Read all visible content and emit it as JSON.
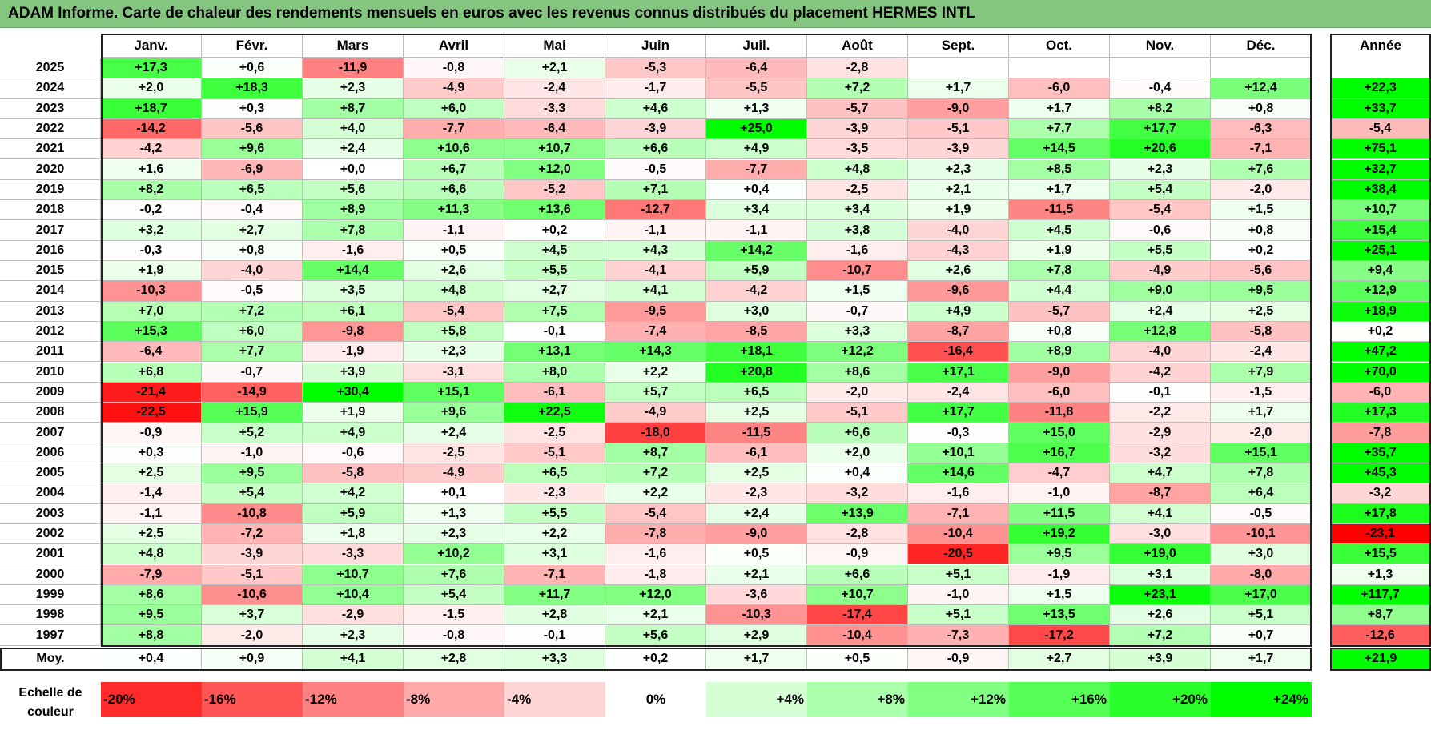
{
  "title": "ADAM Informe. Carte de chaleur des rendements mensuels en euros avec les revenus connus distribués du placement HERMES INTL",
  "chart_data": {
    "type": "heatmap",
    "title": "ADAM Informe. Carte de chaleur des rendements mensuels en euros avec les revenus connus distribués du placement HERMES INTL",
    "months": [
      "Janv.",
      "Févr.",
      "Mars",
      "Avril",
      "Mai",
      "Juin",
      "Juil.",
      "Août",
      "Sept.",
      "Oct.",
      "Nov.",
      "Déc."
    ],
    "year_header": "Année",
    "rows": [
      {
        "year": "2025",
        "values": [
          "+17,3",
          "+0,6",
          "-11,9",
          "-0,8",
          "+2,1",
          "-5,3",
          "-6,4",
          "-2,8",
          "",
          "",
          "",
          ""
        ],
        "annual": ""
      },
      {
        "year": "2024",
        "values": [
          "+2,0",
          "+18,3",
          "+2,3",
          "-4,9",
          "-2,4",
          "-1,7",
          "-5,5",
          "+7,2",
          "+1,7",
          "-6,0",
          "-0,4",
          "+12,4"
        ],
        "annual": "+22,3"
      },
      {
        "year": "2023",
        "values": [
          "+18,7",
          "+0,3",
          "+8,7",
          "+6,0",
          "-3,3",
          "+4,6",
          "+1,3",
          "-5,7",
          "-9,0",
          "+1,7",
          "+8,2",
          "+0,8"
        ],
        "annual": "+33,7"
      },
      {
        "year": "2022",
        "values": [
          "-14,2",
          "-5,6",
          "+4,0",
          "-7,7",
          "-6,4",
          "-3,9",
          "+25,0",
          "-3,9",
          "-5,1",
          "+7,7",
          "+17,7",
          "-6,3"
        ],
        "annual": "-5,4"
      },
      {
        "year": "2021",
        "values": [
          "-4,2",
          "+9,6",
          "+2,4",
          "+10,6",
          "+10,7",
          "+6,6",
          "+4,9",
          "-3,5",
          "-3,9",
          "+14,5",
          "+20,6",
          "-7,1"
        ],
        "annual": "+75,1"
      },
      {
        "year": "2020",
        "values": [
          "+1,6",
          "-6,9",
          "+0,0",
          "+6,7",
          "+12,0",
          "-0,5",
          "-7,7",
          "+4,8",
          "+2,3",
          "+8,5",
          "+2,3",
          "+7,6"
        ],
        "annual": "+32,7"
      },
      {
        "year": "2019",
        "values": [
          "+8,2",
          "+6,5",
          "+5,6",
          "+6,6",
          "-5,2",
          "+7,1",
          "+0,4",
          "-2,5",
          "+2,1",
          "+1,7",
          "+5,4",
          "-2,0"
        ],
        "annual": "+38,4"
      },
      {
        "year": "2018",
        "values": [
          "-0,2",
          "-0,4",
          "+8,9",
          "+11,3",
          "+13,6",
          "-12,7",
          "+3,4",
          "+3,4",
          "+1,9",
          "-11,5",
          "-5,4",
          "+1,5"
        ],
        "annual": "+10,7"
      },
      {
        "year": "2017",
        "values": [
          "+3,2",
          "+2,7",
          "+7,8",
          "-1,1",
          "+0,2",
          "-1,1",
          "-1,1",
          "+3,8",
          "-4,0",
          "+4,5",
          "-0,6",
          "+0,8"
        ],
        "annual": "+15,4"
      },
      {
        "year": "2016",
        "values": [
          "-0,3",
          "+0,8",
          "-1,6",
          "+0,5",
          "+4,5",
          "+4,3",
          "+14,2",
          "-1,6",
          "-4,3",
          "+1,9",
          "+5,5",
          "+0,2"
        ],
        "annual": "+25,1"
      },
      {
        "year": "2015",
        "values": [
          "+1,9",
          "-4,0",
          "+14,4",
          "+2,6",
          "+5,5",
          "-4,1",
          "+5,9",
          "-10,7",
          "+2,6",
          "+7,8",
          "-4,9",
          "-5,6"
        ],
        "annual": "+9,4"
      },
      {
        "year": "2014",
        "values": [
          "-10,3",
          "-0,5",
          "+3,5",
          "+4,8",
          "+2,7",
          "+4,1",
          "-4,2",
          "+1,5",
          "-9,6",
          "+4,4",
          "+9,0",
          "+9,5"
        ],
        "annual": "+12,9"
      },
      {
        "year": "2013",
        "values": [
          "+7,0",
          "+7,2",
          "+6,1",
          "-5,4",
          "+7,5",
          "-9,5",
          "+3,0",
          "-0,7",
          "+4,9",
          "-5,7",
          "+2,4",
          "+2,5"
        ],
        "annual": "+18,9"
      },
      {
        "year": "2012",
        "values": [
          "+15,3",
          "+6,0",
          "-9,8",
          "+5,8",
          "-0,1",
          "-7,4",
          "-8,5",
          "+3,3",
          "-8,7",
          "+0,8",
          "+12,8",
          "-5,8"
        ],
        "annual": "+0,2"
      },
      {
        "year": "2011",
        "values": [
          "-6,4",
          "+7,7",
          "-1,9",
          "+2,3",
          "+13,1",
          "+14,3",
          "+18,1",
          "+12,2",
          "-16,4",
          "+8,9",
          "-4,0",
          "-2,4"
        ],
        "annual": "+47,2"
      },
      {
        "year": "2010",
        "values": [
          "+6,8",
          "-0,7",
          "+3,9",
          "-3,1",
          "+8,0",
          "+2,2",
          "+20,8",
          "+8,6",
          "+17,1",
          "-9,0",
          "-4,2",
          "+7,9"
        ],
        "annual": "+70,0"
      },
      {
        "year": "2009",
        "values": [
          "-21,4",
          "-14,9",
          "+30,4",
          "+15,1",
          "-6,1",
          "+5,7",
          "+6,5",
          "-2,0",
          "-2,4",
          "-6,0",
          "-0,1",
          "-1,5"
        ],
        "annual": "-6,0"
      },
      {
        "year": "2008",
        "values": [
          "-22,5",
          "+15,9",
          "+1,9",
          "+9,6",
          "+22,5",
          "-4,9",
          "+2,5",
          "-5,1",
          "+17,7",
          "-11,8",
          "-2,2",
          "+1,7"
        ],
        "annual": "+17,3"
      },
      {
        "year": "2007",
        "values": [
          "-0,9",
          "+5,2",
          "+4,9",
          "+2,4",
          "-2,5",
          "-18,0",
          "-11,5",
          "+6,6",
          "-0,3",
          "+15,0",
          "-2,9",
          "-2,0"
        ],
        "annual": "-7,8"
      },
      {
        "year": "2006",
        "values": [
          "+0,3",
          "-1,0",
          "-0,6",
          "-2,5",
          "-5,1",
          "+8,7",
          "-6,1",
          "+2,0",
          "+10,1",
          "+16,7",
          "-3,2",
          "+15,1"
        ],
        "annual": "+35,7"
      },
      {
        "year": "2005",
        "values": [
          "+2,5",
          "+9,5",
          "-5,8",
          "-4,9",
          "+6,5",
          "+7,2",
          "+2,5",
          "+0,4",
          "+14,6",
          "-4,7",
          "+4,7",
          "+7,8"
        ],
        "annual": "+45,3"
      },
      {
        "year": "2004",
        "values": [
          "-1,4",
          "+5,4",
          "+4,2",
          "+0,1",
          "-2,3",
          "+2,2",
          "-2,3",
          "-3,2",
          "-1,6",
          "-1,0",
          "-8,7",
          "+6,4"
        ],
        "annual": "-3,2"
      },
      {
        "year": "2003",
        "values": [
          "-1,1",
          "-10,8",
          "+5,9",
          "+1,3",
          "+5,5",
          "-5,4",
          "+2,4",
          "+13,9",
          "-7,1",
          "+11,5",
          "+4,1",
          "-0,5"
        ],
        "annual": "+17,8"
      },
      {
        "year": "2002",
        "values": [
          "+2,5",
          "-7,2",
          "+1,8",
          "+2,3",
          "+2,2",
          "-7,8",
          "-9,0",
          "-2,8",
          "-10,4",
          "+19,2",
          "-3,0",
          "-10,1"
        ],
        "annual": "-23,1"
      },
      {
        "year": "2001",
        "values": [
          "+4,8",
          "-3,9",
          "-3,3",
          "+10,2",
          "+3,1",
          "-1,6",
          "+0,5",
          "-0,9",
          "-20,5",
          "+9,5",
          "+19,0",
          "+3,0"
        ],
        "annual": "+15,5"
      },
      {
        "year": "2000",
        "values": [
          "-7,9",
          "-5,1",
          "+10,7",
          "+7,6",
          "-7,1",
          "-1,8",
          "+2,1",
          "+6,6",
          "+5,1",
          "-1,9",
          "+3,1",
          "-8,0"
        ],
        "annual": "+1,3"
      },
      {
        "year": "1999",
        "values": [
          "+8,6",
          "-10,6",
          "+10,4",
          "+5,4",
          "+11,7",
          "+12,0",
          "-3,6",
          "+10,7",
          "-1,0",
          "+1,5",
          "+23,1",
          "+17,0"
        ],
        "annual": "+117,7"
      },
      {
        "year": "1998",
        "values": [
          "+9,5",
          "+3,7",
          "-2,9",
          "-1,5",
          "+2,8",
          "+2,1",
          "-10,3",
          "-17,4",
          "+5,1",
          "+13,5",
          "+2,6",
          "+5,1"
        ],
        "annual": "+8,7"
      },
      {
        "year": "1997",
        "values": [
          "+8,8",
          "-2,0",
          "+2,3",
          "-0,8",
          "-0,1",
          "+5,6",
          "+2,9",
          "-10,4",
          "-7,3",
          "-17,2",
          "+7,2",
          "+0,7"
        ],
        "annual": "-12,6"
      }
    ],
    "average": {
      "label": "Moy.",
      "values": [
        "+0,4",
        "+0,9",
        "+4,1",
        "+2,8",
        "+3,3",
        "+0,2",
        "+1,7",
        "+0,5",
        "-0,9",
        "+2,7",
        "+3,9",
        "+1,7"
      ],
      "annual": "+21,9"
    },
    "legend": {
      "label_line1": "Echelle de",
      "label_line2": "couleur",
      "steps": [
        {
          "label": "-20%",
          "value": -20
        },
        {
          "label": "-16%",
          "value": -16
        },
        {
          "label": "-12%",
          "value": -12
        },
        {
          "label": "-8%",
          "value": -8
        },
        {
          "label": "-4%",
          "value": -4
        },
        {
          "label": "0%",
          "value": 0
        },
        {
          "label": "+4%",
          "value": 4
        },
        {
          "label": "+8%",
          "value": 8
        },
        {
          "label": "+12%",
          "value": 12
        },
        {
          "label": "+16%",
          "value": 16
        },
        {
          "label": "+20%",
          "value": 20
        },
        {
          "label": "+24%",
          "value": 24
        }
      ]
    },
    "colors": {
      "negative_max": "#ff0000",
      "neutral": "#ffffff",
      "positive_max": "#00ff00",
      "title_bar": "#84c67f"
    }
  }
}
